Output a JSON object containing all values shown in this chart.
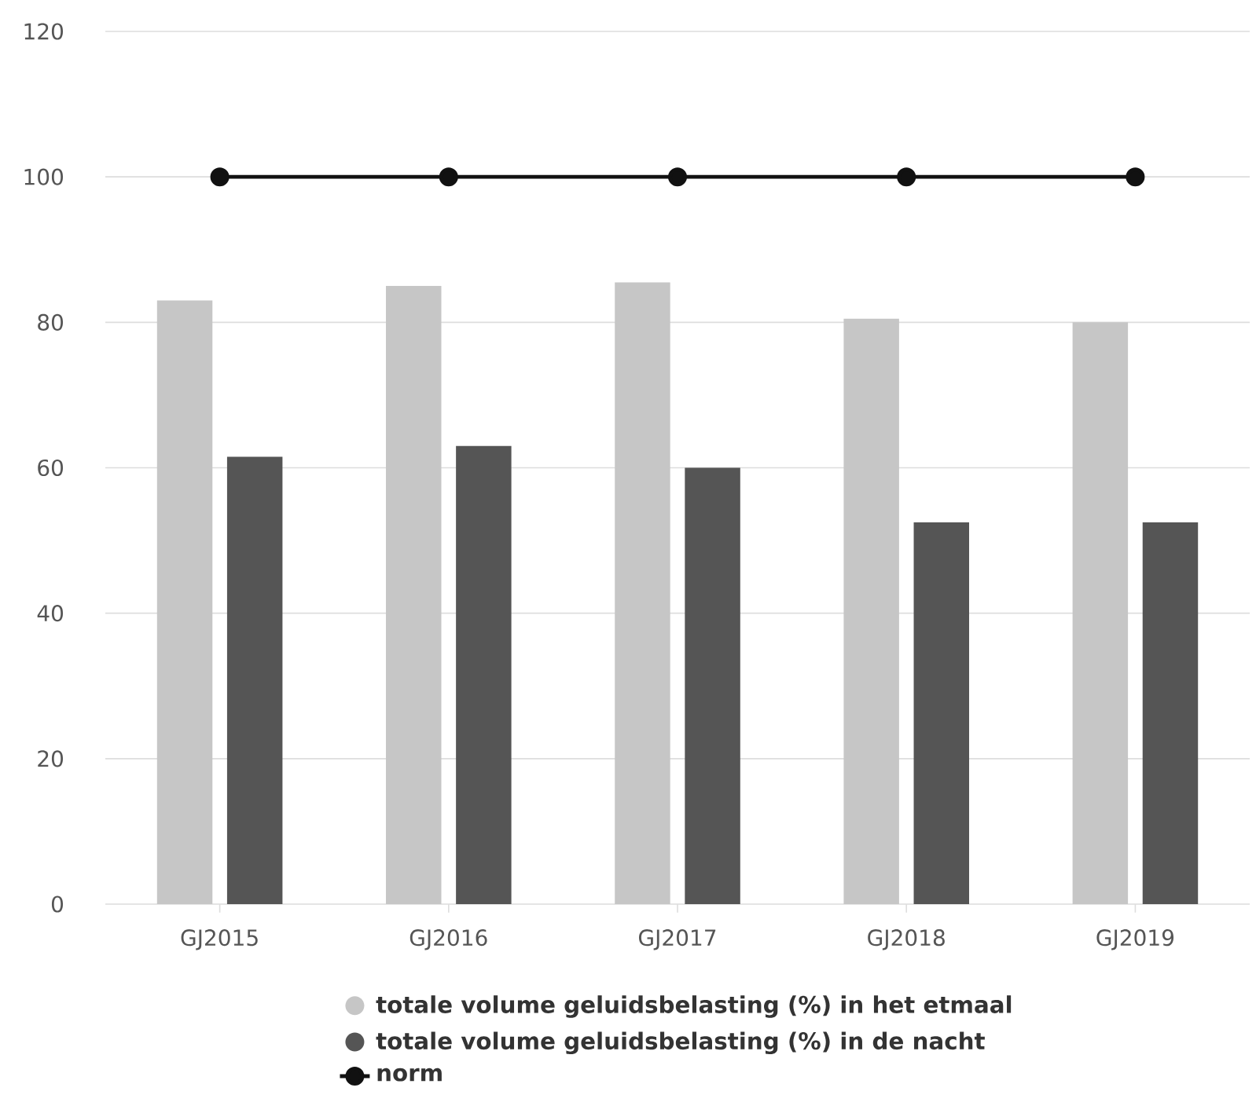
{
  "chart_data": {
    "type": "bar",
    "categories": [
      "GJ2015",
      "GJ2016",
      "GJ2017",
      "GJ2018",
      "GJ2019"
    ],
    "series": [
      {
        "name": "totale volume geluidsbelasting (%) in het etmaal",
        "color": "#c6c6c6",
        "values": [
          83,
          85,
          85.5,
          80.5,
          80
        ]
      },
      {
        "name": "totale volume geluidsbelasting (%) in de nacht",
        "color": "#555555",
        "values": [
          61.5,
          63,
          60,
          52.5,
          52.5
        ]
      },
      {
        "name": "norm",
        "type": "line",
        "color": "#111111",
        "marker": "circle",
        "line_style": "solid",
        "values": [
          100,
          100,
          100,
          100,
          100
        ]
      }
    ],
    "ylim": [
      0,
      120
    ],
    "yticks": [
      0,
      20,
      40,
      60,
      80,
      100,
      120
    ],
    "grid": "y",
    "legend": "bottom"
  }
}
